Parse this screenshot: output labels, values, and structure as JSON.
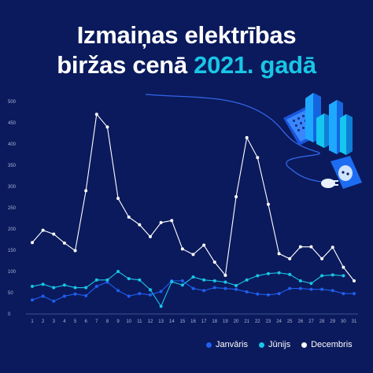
{
  "title": {
    "line1": "Izmaiņas elektrības",
    "line2_prefix": "biržas cenā",
    "line2_accent": "2021. gadā"
  },
  "colors": {
    "background": "#0b1a5c",
    "accent": "#19c6e6",
    "janvaris": "#1f5ff0",
    "junijs": "#19c6e6",
    "decembris": "#ffffff"
  },
  "illustration_icons": [
    "calendar-icon",
    "bar-chart-icon",
    "power-socket-icon",
    "plug-icon"
  ],
  "chart_data": {
    "type": "line",
    "title": "Izmaiņas elektrības biržas cenā 2021. gadā",
    "xlabel": "",
    "ylabel": "",
    "x": [
      1,
      2,
      3,
      4,
      5,
      6,
      7,
      8,
      9,
      10,
      11,
      12,
      13,
      14,
      15,
      16,
      17,
      18,
      19,
      20,
      21,
      22,
      23,
      24,
      25,
      26,
      27,
      28,
      29,
      30,
      31
    ],
    "ylim": [
      0,
      500
    ],
    "yticks": [
      0,
      50,
      100,
      150,
      200,
      250,
      300,
      350,
      400,
      450,
      500
    ],
    "grid": false,
    "legend_position": "bottom-right",
    "series": [
      {
        "name": "Janvāris",
        "color": "#1f5ff0",
        "values": [
          33,
          42,
          30,
          42,
          47,
          43,
          65,
          75,
          55,
          42,
          48,
          45,
          53,
          78,
          78,
          60,
          55,
          62,
          60,
          58,
          52,
          47,
          45,
          48,
          60,
          60,
          58,
          58,
          55,
          48,
          48
        ]
      },
      {
        "name": "Jūnijs",
        "color": "#19c6e6",
        "values": [
          65,
          70,
          62,
          68,
          62,
          62,
          80,
          80,
          100,
          83,
          80,
          57,
          18,
          76,
          68,
          87,
          80,
          78,
          75,
          67,
          80,
          90,
          95,
          97,
          93,
          78,
          72,
          90,
          92,
          90,
          null
        ]
      },
      {
        "name": "Decembris",
        "color": "#ffffff",
        "values": [
          168,
          197,
          188,
          167,
          149,
          290,
          470,
          440,
          272,
          228,
          210,
          182,
          215,
          220,
          153,
          140,
          162,
          122,
          91,
          276,
          415,
          368,
          258,
          142,
          130,
          158,
          158,
          130,
          157,
          110,
          78
        ]
      }
    ]
  }
}
